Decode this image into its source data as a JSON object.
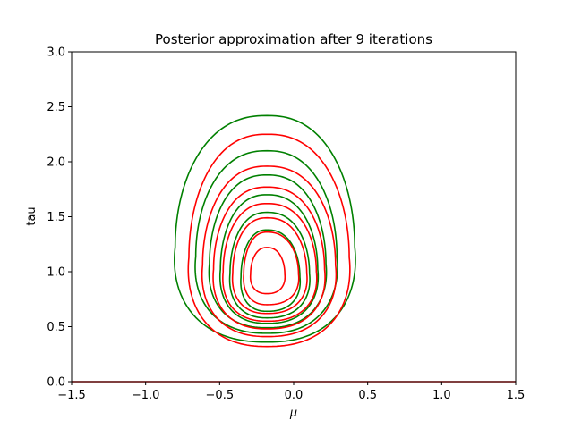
{
  "chart_data": {
    "type": "line",
    "title": "Posterior approximation after 9 iterations",
    "xlabel": "μ",
    "ylabel": "tau",
    "xlim": [
      -1.5,
      1.5
    ],
    "ylim": [
      0.0,
      3.0
    ],
    "xticks": [
      "−1.5",
      "−1.0",
      "−0.5",
      "0.0",
      "0.5",
      "1.0",
      "1.5"
    ],
    "xtick_values": [
      -1.5,
      -1.0,
      -0.5,
      0.0,
      0.5,
      1.0,
      1.5
    ],
    "yticks": [
      "0.0",
      "0.5",
      "1.0",
      "1.5",
      "2.0",
      "2.5",
      "3.0"
    ],
    "ytick_values": [
      0.0,
      0.5,
      1.0,
      1.5,
      2.0,
      2.5,
      3.0
    ],
    "grid": false,
    "series": [
      {
        "color": "#008000",
        "kind": "contour",
        "levels": [
          {
            "top": 2.42,
            "bottom": 0.36,
            "xmin": -0.85,
            "xmax": 0.46
          },
          {
            "top": 2.1,
            "bottom": 0.44,
            "xmin": -0.7,
            "xmax": 0.33
          },
          {
            "top": 1.88,
            "bottom": 0.49,
            "xmin": -0.6,
            "xmax": 0.25
          },
          {
            "top": 1.7,
            "bottom": 0.53,
            "xmin": -0.52,
            "xmax": 0.19
          },
          {
            "top": 1.54,
            "bottom": 0.58,
            "xmin": -0.45,
            "xmax": 0.13
          },
          {
            "top": 1.38,
            "bottom": 0.64,
            "xmin": -0.37,
            "xmax": 0.06
          }
        ]
      },
      {
        "color": "#ff0000",
        "kind": "contour",
        "levels": [
          {
            "top": 2.25,
            "bottom": 0.32,
            "xmin": -0.75,
            "xmax": 0.42
          },
          {
            "top": 1.96,
            "bottom": 0.41,
            "xmin": -0.65,
            "xmax": 0.32
          },
          {
            "top": 1.77,
            "bottom": 0.48,
            "xmin": -0.57,
            "xmax": 0.24
          },
          {
            "top": 1.62,
            "bottom": 0.55,
            "xmin": -0.5,
            "xmax": 0.18
          },
          {
            "top": 1.49,
            "bottom": 0.62,
            "xmin": -0.43,
            "xmax": 0.11
          },
          {
            "top": 1.36,
            "bottom": 0.7,
            "xmin": -0.35,
            "xmax": 0.05
          },
          {
            "top": 1.22,
            "bottom": 0.8,
            "xmin": -0.3,
            "xmax": -0.05
          }
        ]
      },
      {
        "color": "#ff0000",
        "kind": "line",
        "x": [
          -1.5,
          1.5
        ],
        "y": [
          0.0,
          0.0
        ]
      }
    ]
  }
}
